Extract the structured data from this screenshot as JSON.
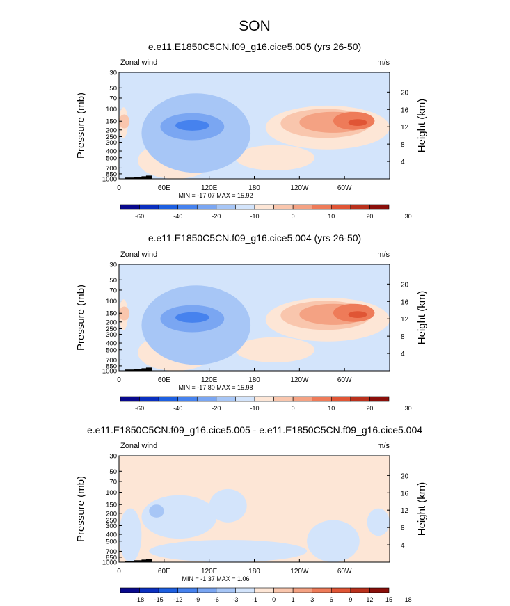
{
  "figure": {
    "title": "SON"
  },
  "colors": {
    "abs_scale": [
      "#08088c",
      "#0a2fbf",
      "#1d5fe0",
      "#4682ee",
      "#7aa6f2",
      "#a7c6f6",
      "#d3e4fb",
      "#fde6d6",
      "#f9c6ad",
      "#f4a283",
      "#ee7b59",
      "#e05535",
      "#b9301c",
      "#8a0f0a"
    ],
    "diff_scale": [
      "#08088c",
      "#0a2fbf",
      "#1d5fe0",
      "#4682ee",
      "#7aa6f2",
      "#a7c6f6",
      "#d3e4fb",
      "#fde6d6",
      "#f9c6ad",
      "#f4a283",
      "#ee7b59",
      "#e05535",
      "#b9301c",
      "#8a0f0a"
    ],
    "topography": "#000000"
  },
  "chart_data": [
    {
      "type": "heatmap",
      "title": "e.e11.E1850C5CN.f09_g16.cice5.005 (yrs 26-50)",
      "field_label": "Zonal wind",
      "units": "m/s",
      "ylabel": "Pressure (mb)",
      "ylabel_right": "Height (km)",
      "x_ticks": [
        "0",
        "60E",
        "120E",
        "180",
        "120W",
        "60W"
      ],
      "y_ticks": [
        "30",
        "50",
        "70",
        "100",
        "150",
        "200",
        "250",
        "300",
        "400",
        "500",
        "700",
        "850",
        "1000"
      ],
      "height_ticks": [
        "20",
        "16",
        "12",
        "8",
        "4"
      ],
      "stats": "MIN = -17.07  MAX =  15.92",
      "colorbar_labels": [
        "-60",
        "-40",
        "-20",
        "-10",
        "0",
        "10",
        "20",
        "30"
      ],
      "min": -17.07,
      "max": 15.92
    },
    {
      "type": "heatmap",
      "title": "e.e11.E1850C5CN.f09_g16.cice5.004 (yrs 26-50)",
      "field_label": "Zonal wind",
      "units": "m/s",
      "ylabel": "Pressure (mb)",
      "ylabel_right": "Height (km)",
      "x_ticks": [
        "0",
        "60E",
        "120E",
        "180",
        "120W",
        "60W"
      ],
      "y_ticks": [
        "30",
        "50",
        "70",
        "100",
        "150",
        "200",
        "250",
        "300",
        "400",
        "500",
        "700",
        "850",
        "1000"
      ],
      "height_ticks": [
        "20",
        "16",
        "12",
        "8",
        "4"
      ],
      "stats": "MIN = -17.80  MAX =  15.98",
      "colorbar_labels": [
        "-60",
        "-40",
        "-20",
        "-10",
        "0",
        "10",
        "20",
        "30"
      ],
      "min": -17.8,
      "max": 15.98
    },
    {
      "type": "heatmap",
      "title": "e.e11.E1850C5CN.f09_g16.cice5.005 - e.e11.E1850C5CN.f09_g16.cice5.004",
      "field_label": "Zonal wind",
      "units": "m/s",
      "ylabel": "Pressure (mb)",
      "ylabel_right": "Height (km)",
      "x_ticks": [
        "0",
        "60E",
        "120E",
        "180",
        "120W",
        "60W"
      ],
      "y_ticks": [
        "30",
        "50",
        "70",
        "100",
        "150",
        "200",
        "250",
        "300",
        "400",
        "500",
        "700",
        "850",
        "1000"
      ],
      "height_ticks": [
        "20",
        "16",
        "12",
        "8",
        "4"
      ],
      "stats": "MIN = -1.37  MAX =  1.06",
      "colorbar_labels": [
        "-18",
        "-15",
        "-12",
        "-9",
        "-6",
        "-3",
        "-1",
        "0",
        "1",
        "3",
        "6",
        "9",
        "12",
        "15",
        "18"
      ],
      "min": -1.37,
      "max": 1.06
    }
  ]
}
